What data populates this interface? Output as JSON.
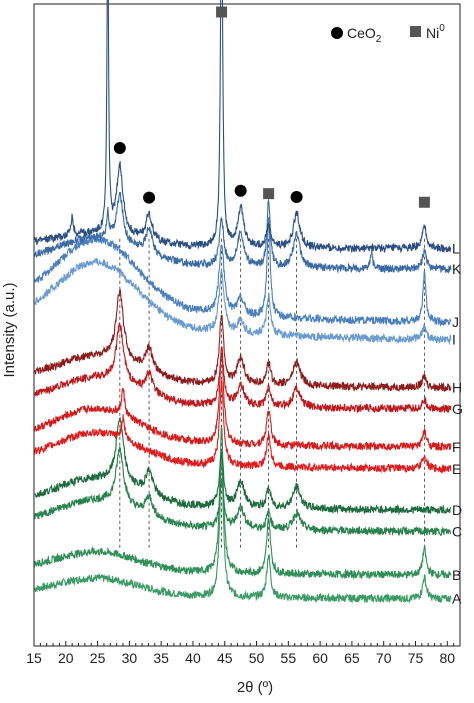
{
  "chart_data": {
    "type": "line",
    "title": "",
    "xlabel": "2θ (º)",
    "ylabel": "Intensity (a.u.)",
    "xlim": [
      15,
      82
    ],
    "x_ticks": [
      15,
      20,
      25,
      30,
      35,
      40,
      45,
      50,
      55,
      60,
      65,
      70,
      75,
      80
    ],
    "x_tick_labels": [
      "15",
      "20",
      "25",
      "30",
      "35",
      "40",
      "45",
      "50",
      "55",
      "60",
      "65",
      "70",
      "75",
      "80"
    ],
    "y_ticks_shown": false,
    "grid": false,
    "legend": {
      "placement": "top-right",
      "entries": [
        {
          "name_main": "CeO",
          "name_sub": "2",
          "marker": "circle",
          "color": "#000000"
        },
        {
          "name_main": "Ni",
          "name_sup": "0",
          "marker": "square",
          "color": "#555555"
        }
      ]
    },
    "reflection_markers": [
      {
        "phase": "CeO2",
        "marker": "circle",
        "x": 28.5
      },
      {
        "phase": "CeO2",
        "marker": "circle",
        "x": 33.1
      },
      {
        "phase": "CeO2",
        "marker": "circle",
        "x": 47.5
      },
      {
        "phase": "CeO2",
        "marker": "circle",
        "x": 56.3
      },
      {
        "phase": "Ni0",
        "marker": "square",
        "x": 44.5
      },
      {
        "phase": "Ni0",
        "marker": "square",
        "x": 51.9
      },
      {
        "phase": "Ni0",
        "marker": "square",
        "x": 76.4
      }
    ],
    "reference_lines_x": [
      28.5,
      33.1,
      44.5,
      47.5,
      51.9,
      56.3,
      76.4
    ],
    "series": [
      {
        "label": "A",
        "color": "#3a9a63",
        "baseline": 0.0,
        "bg": 0.4,
        "peaks": [
          {
            "x": 44.5,
            "h": 3.2,
            "w": 0.35
          },
          {
            "x": 51.9,
            "h": 1.0,
            "w": 0.35
          },
          {
            "x": 76.4,
            "h": 0.5,
            "w": 0.35
          }
        ]
      },
      {
        "label": "B",
        "color": "#2f8f56",
        "baseline": 0.55,
        "bg": 0.45,
        "peaks": [
          {
            "x": 44.5,
            "h": 3.4,
            "w": 0.35
          },
          {
            "x": 51.9,
            "h": 1.3,
            "w": 0.35
          },
          {
            "x": 76.4,
            "h": 0.6,
            "w": 0.35
          }
        ]
      },
      {
        "label": "C",
        "color": "#27824c",
        "baseline": 1.55,
        "bg": 0.6,
        "peaks": [
          {
            "x": 28.5,
            "h": 1.3,
            "w": 0.7
          },
          {
            "x": 33.1,
            "h": 0.45,
            "w": 0.7
          },
          {
            "x": 44.5,
            "h": 1.1,
            "w": 0.4
          },
          {
            "x": 47.5,
            "h": 0.5,
            "w": 0.7
          },
          {
            "x": 51.9,
            "h": 0.4,
            "w": 0.4
          },
          {
            "x": 56.3,
            "h": 0.4,
            "w": 0.7
          }
        ]
      },
      {
        "label": "D",
        "color": "#1d6a3c",
        "baseline": 2.05,
        "bg": 0.6,
        "peaks": [
          {
            "x": 28.5,
            "h": 1.5,
            "w": 0.7
          },
          {
            "x": 33.1,
            "h": 0.55,
            "w": 0.7
          },
          {
            "x": 44.5,
            "h": 1.2,
            "w": 0.4
          },
          {
            "x": 47.5,
            "h": 0.6,
            "w": 0.7
          },
          {
            "x": 51.9,
            "h": 0.45,
            "w": 0.4
          },
          {
            "x": 56.3,
            "h": 0.5,
            "w": 0.7
          }
        ]
      },
      {
        "label": "E",
        "color": "#e31a1c",
        "baseline": 3.0,
        "bg": 0.7,
        "peaks": [
          {
            "x": 29.0,
            "h": 0.5,
            "w": 0.3
          },
          {
            "x": 44.5,
            "h": 1.9,
            "w": 0.4
          },
          {
            "x": 51.9,
            "h": 0.7,
            "w": 0.4
          },
          {
            "x": 76.4,
            "h": 0.3,
            "w": 0.4
          }
        ]
      },
      {
        "label": "F",
        "color": "#d6191b",
        "baseline": 3.5,
        "bg": 0.75,
        "peaks": [
          {
            "x": 29.0,
            "h": 0.6,
            "w": 0.3
          },
          {
            "x": 44.5,
            "h": 2.1,
            "w": 0.4
          },
          {
            "x": 51.9,
            "h": 0.8,
            "w": 0.4
          },
          {
            "x": 76.4,
            "h": 0.35,
            "w": 0.4
          }
        ]
      },
      {
        "label": "G",
        "color": "#c0171a",
        "baseline": 4.4,
        "bg": 0.6,
        "peaks": [
          {
            "x": 28.5,
            "h": 1.3,
            "w": 0.7
          },
          {
            "x": 33.1,
            "h": 0.45,
            "w": 0.7
          },
          {
            "x": 44.5,
            "h": 1.3,
            "w": 0.4
          },
          {
            "x": 47.5,
            "h": 0.5,
            "w": 0.7
          },
          {
            "x": 51.9,
            "h": 0.45,
            "w": 0.4
          },
          {
            "x": 56.3,
            "h": 0.45,
            "w": 0.7
          },
          {
            "x": 76.4,
            "h": 0.2,
            "w": 0.4
          }
        ]
      },
      {
        "label": "H",
        "color": "#8f1a1a",
        "baseline": 4.9,
        "bg": 0.6,
        "peaks": [
          {
            "x": 28.5,
            "h": 1.6,
            "w": 0.7
          },
          {
            "x": 33.1,
            "h": 0.55,
            "w": 0.7
          },
          {
            "x": 44.5,
            "h": 1.6,
            "w": 0.4
          },
          {
            "x": 47.5,
            "h": 0.6,
            "w": 0.7
          },
          {
            "x": 51.9,
            "h": 0.5,
            "w": 0.4
          },
          {
            "x": 56.3,
            "h": 0.55,
            "w": 0.7
          },
          {
            "x": 76.4,
            "h": 0.25,
            "w": 0.4
          }
        ]
      },
      {
        "label": "I",
        "color": "#6a9bd0",
        "baseline": 5.95,
        "bg": 1.5,
        "peaks": [
          {
            "x": 44.5,
            "h": 1.4,
            "w": 0.5
          },
          {
            "x": 47.5,
            "h": 0.3,
            "w": 0.6
          },
          {
            "x": 51.9,
            "h": 0.9,
            "w": 0.4
          },
          {
            "x": 76.4,
            "h": 0.3,
            "w": 0.4
          }
        ]
      },
      {
        "label": "J",
        "color": "#4a7fbf",
        "baseline": 6.35,
        "bg": 1.6,
        "peaks": [
          {
            "x": 44.5,
            "h": 1.6,
            "w": 0.5
          },
          {
            "x": 47.5,
            "h": 0.4,
            "w": 0.6
          },
          {
            "x": 51.9,
            "h": 2.3,
            "w": 0.3
          },
          {
            "x": 76.4,
            "h": 1.1,
            "w": 0.3
          }
        ]
      },
      {
        "label": "K",
        "color": "#3a6aa5",
        "baseline": 7.65,
        "bg": 0.6,
        "peaks": [
          {
            "x": 26.6,
            "h": 0.6,
            "w": 0.2
          },
          {
            "x": 28.5,
            "h": 1.1,
            "w": 0.6
          },
          {
            "x": 33.1,
            "h": 0.6,
            "w": 0.6
          },
          {
            "x": 44.5,
            "h": 1.1,
            "w": 0.4
          },
          {
            "x": 47.5,
            "h": 0.8,
            "w": 0.6
          },
          {
            "x": 51.9,
            "h": 1.5,
            "w": 0.3
          },
          {
            "x": 56.3,
            "h": 0.8,
            "w": 0.6
          },
          {
            "x": 68.1,
            "h": 0.4,
            "w": 0.2
          },
          {
            "x": 76.4,
            "h": 0.4,
            "w": 0.4
          }
        ]
      },
      {
        "label": "L",
        "color": "#2a4e82",
        "baseline": 8.15,
        "bg": 0.3,
        "peaks": [
          {
            "x": 21.0,
            "h": 0.4,
            "w": 0.2
          },
          {
            "x": 26.6,
            "h": 7.2,
            "w": 0.15
          },
          {
            "x": 28.5,
            "h": 1.6,
            "w": 0.6
          },
          {
            "x": 33.1,
            "h": 0.6,
            "w": 0.6
          },
          {
            "x": 44.5,
            "h": 8.5,
            "w": 0.2
          },
          {
            "x": 47.5,
            "h": 0.9,
            "w": 0.6
          },
          {
            "x": 51.9,
            "h": 0.5,
            "w": 0.4
          },
          {
            "x": 56.3,
            "h": 0.8,
            "w": 0.6
          },
          {
            "x": 76.4,
            "h": 0.5,
            "w": 0.4
          }
        ]
      }
    ]
  }
}
